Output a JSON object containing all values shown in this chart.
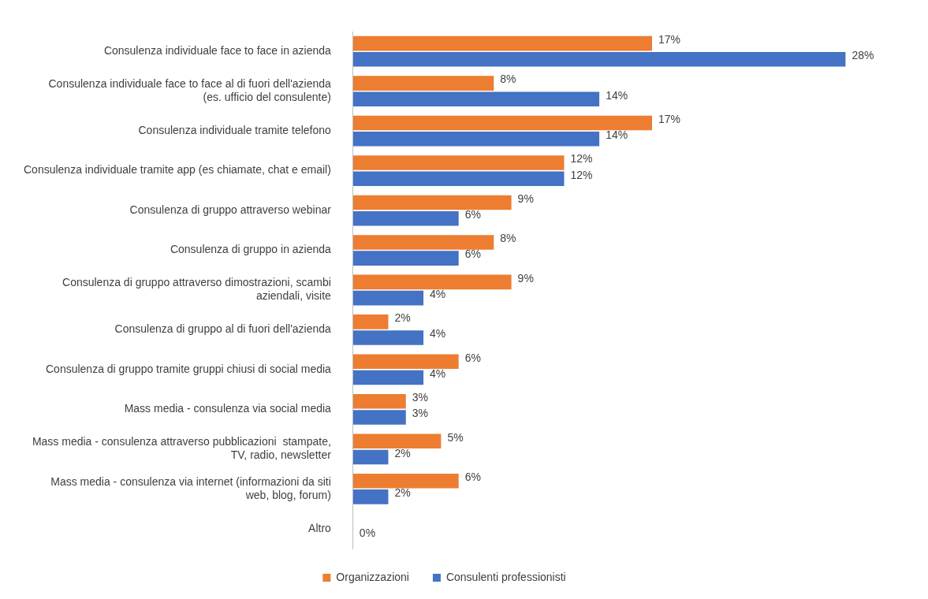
{
  "chart_data": {
    "type": "bar",
    "orientation": "horizontal",
    "legend": "bottom",
    "tick_labels": "y",
    "categories": [
      "Consulenza individuale face to face in azienda",
      "Consulenza individuale face to face al di fuori dell'azienda (es. ufficio del consulente)",
      "Consulenza individuale tramite telefono",
      "Consulenza individuale tramite app (es chiamate, chat e email)",
      "Consulenza di gruppo attraverso webinar",
      "Consulenza di gruppo in azienda",
      "Consulenza di gruppo attraverso dimostrazioni, scambi aziendali, visite",
      "Consulenza di gruppo al di fuori dell'azienda",
      "Consulenza di gruppo tramite gruppi chiusi di social media",
      "Mass media - consulenza via social media",
      "Mass media - consulenza attraverso pubblicazioni  stampate, TV, radio, newsletter",
      "Mass media - consulenza via internet (informazioni da siti web, blog, forum)",
      "Altro"
    ],
    "series": [
      {
        "name": "Organizzazioni",
        "color": "#ed7d31",
        "values": [
          17,
          8,
          17,
          12,
          9,
          8,
          9,
          2,
          6,
          3,
          5,
          6,
          null
        ],
        "value_labels": [
          "17%",
          "8%",
          "17%",
          "12%",
          "9%",
          "8%",
          "9%",
          "2%",
          "6%",
          "3%",
          "5%",
          "6%",
          null
        ]
      },
      {
        "name": "Consulenti professionisti",
        "color": "#4472c4",
        "values": [
          28,
          14,
          14,
          12,
          6,
          6,
          4,
          4,
          4,
          3,
          2,
          2,
          0
        ],
        "value_labels": [
          "28%",
          "14%",
          "14%",
          "12%",
          "6%",
          "6%",
          "4%",
          "4%",
          "4%",
          "3%",
          "2%",
          "2%",
          "0%"
        ]
      }
    ]
  }
}
